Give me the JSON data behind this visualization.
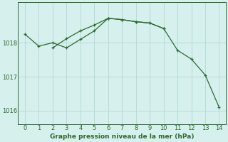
{
  "line1_x": [
    0,
    1,
    2,
    3,
    4,
    5,
    6,
    7,
    8,
    9,
    10,
    11,
    12,
    13,
    14
  ],
  "line1_y": [
    1018.25,
    1017.9,
    1018.0,
    1017.85,
    1018.1,
    1018.35,
    1018.72,
    1018.68,
    1018.62,
    1018.58,
    1018.42,
    1017.78,
    1017.52,
    1017.05,
    1016.1
  ],
  "line2_x": [
    2,
    3,
    4,
    5,
    6,
    7,
    8,
    9,
    10
  ],
  "line2_y": [
    1017.85,
    1018.12,
    1018.35,
    1018.52,
    1018.72,
    1018.68,
    1018.62,
    1018.58,
    1018.42
  ],
  "line_color": "#2d6a2d",
  "bg_color": "#d6f0ee",
  "grid_color": "#b8dbd8",
  "xlabel": "Graphe pression niveau de la mer (hPa)",
  "ylim": [
    1015.6,
    1019.2
  ],
  "xlim": [
    -0.5,
    14.5
  ],
  "yticks": [
    1016,
    1017,
    1018
  ],
  "xticks": [
    0,
    1,
    2,
    3,
    4,
    5,
    6,
    7,
    8,
    9,
    10,
    11,
    12,
    13,
    14
  ]
}
